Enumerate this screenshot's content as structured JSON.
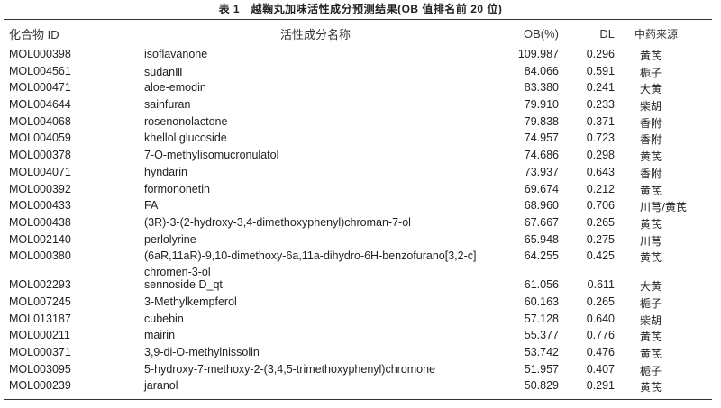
{
  "title": "表 1　越鞠丸加味活性成分预测结果(OB 值排名前 20 位)",
  "headers": {
    "id": "化合物 ID",
    "name": "活性成分名称",
    "ob": "OB(%)",
    "dl": "DL",
    "source": "中药来源"
  },
  "rows": [
    {
      "id": "MOL000398",
      "name": "isoflavanone",
      "ob": "109.987",
      "dl": "0.296",
      "source": "黄芪"
    },
    {
      "id": "MOL004561",
      "name": "sudanⅢ",
      "ob": "84.066",
      "dl": "0.591",
      "source": "栀子"
    },
    {
      "id": "MOL000471",
      "name": "aloe-emodin",
      "ob": "83.380",
      "dl": "0.241",
      "source": "大黄"
    },
    {
      "id": "MOL004644",
      "name": "sainfuran",
      "ob": "79.910",
      "dl": "0.233",
      "source": "柴胡"
    },
    {
      "id": "MOL004068",
      "name": "rosenonolactone",
      "ob": "79.838",
      "dl": "0.371",
      "source": "香附"
    },
    {
      "id": "MOL004059",
      "name": "khellol glucoside",
      "ob": "74.957",
      "dl": "0.723",
      "source": "香附"
    },
    {
      "id": "MOL000378",
      "name": "7-O-methylisomucronulatol",
      "ob": "74.686",
      "dl": "0.298",
      "source": "黄芪"
    },
    {
      "id": "MOL004071",
      "name": "hyndarin",
      "ob": "73.937",
      "dl": "0.643",
      "source": "香附"
    },
    {
      "id": "MOL000392",
      "name": "formononetin",
      "ob": "69.674",
      "dl": "0.212",
      "source": "黄芪"
    },
    {
      "id": "MOL000433",
      "name": "FA",
      "ob": "68.960",
      "dl": "0.706",
      "source": "川芎/黄芪"
    },
    {
      "id": "MOL000438",
      "name": "(3R)-3-(2-hydroxy-3,4-dimethoxyphenyl)chroman-7-ol",
      "ob": "67.667",
      "dl": "0.265",
      "source": "黄芪"
    },
    {
      "id": "MOL002140",
      "name": "perlolyrine",
      "ob": "65.948",
      "dl": "0.275",
      "source": "川芎"
    },
    {
      "id": "MOL000380",
      "name": "(6aR,11aR)-9,10-dimethoxy-6a,11a-dihydro-6H-benzofurano[3,2-c]",
      "name2": "chromen-3-ol",
      "ob": "64.255",
      "dl": "0.425",
      "source": "黄芪"
    },
    {
      "id": "MOL002293",
      "name": "sennoside D_qt",
      "ob": "61.056",
      "dl": "0.611",
      "source": "大黄"
    },
    {
      "id": "MOL007245",
      "name": "3-Methylkempferol",
      "ob": "60.163",
      "dl": "0.265",
      "source": "栀子"
    },
    {
      "id": "MOL013187",
      "name": "cubebin",
      "ob": "57.128",
      "dl": "0.640",
      "source": "柴胡"
    },
    {
      "id": "MOL000211",
      "name": "mairin",
      "ob": "55.377",
      "dl": "0.776",
      "source": "黄芪"
    },
    {
      "id": "MOL000371",
      "name": "3,9-di-O-methylnissolin",
      "ob": "53.742",
      "dl": "0.476",
      "source": "黄芪"
    },
    {
      "id": "MOL003095",
      "name": "5-hydroxy-7-methoxy-2-(3,4,5-trimethoxyphenyl)chromone",
      "ob": "51.957",
      "dl": "0.407",
      "source": "栀子"
    },
    {
      "id": "MOL000239",
      "name": "jaranol",
      "ob": "50.829",
      "dl": "0.291",
      "source": "黄芪"
    }
  ]
}
